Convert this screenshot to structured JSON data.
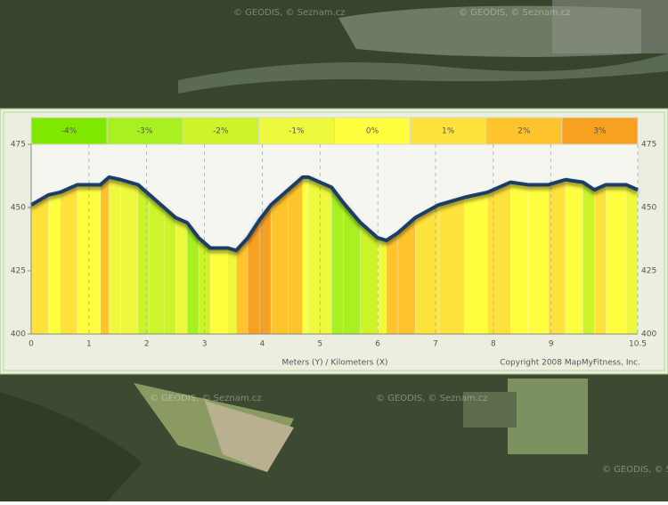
{
  "map": {
    "watermarks": [
      "© GEODIS, © Seznam.cz",
      "© GEODIS, © Seznam.cz",
      "© GEODIS, © Seznam.cz",
      "© GEODIS, © Seznam.cz",
      "© GEODIS, © Seznam.cz"
    ]
  },
  "chart_data": {
    "type": "area",
    "grades": [
      {
        "value": -4,
        "label": "-4%",
        "color": "#80e800"
      },
      {
        "value": -3,
        "label": "-3%",
        "color": "#a8f020"
      },
      {
        "value": -2,
        "label": "-2%",
        "color": "#ccf428"
      },
      {
        "value": -1,
        "label": "-1%",
        "color": "#eef83c"
      },
      {
        "value": 0,
        "label": "0%",
        "color": "#ffff40"
      },
      {
        "value": 1,
        "label": "1%",
        "color": "#ffe23c"
      },
      {
        "value": 2,
        "label": "2%",
        "color": "#ffc42c"
      },
      {
        "value": 3,
        "label": "3%",
        "color": "#f8a020"
      }
    ],
    "x": [
      0,
      0.3,
      0.5,
      0.8,
      1.0,
      1.2,
      1.35,
      1.55,
      1.85,
      2.05,
      2.3,
      2.5,
      2.7,
      2.9,
      3.1,
      3.4,
      3.55,
      3.75,
      3.95,
      4.15,
      4.45,
      4.7,
      4.8,
      5.2,
      5.4,
      5.7,
      6.0,
      6.15,
      6.35,
      6.65,
      7.05,
      7.5,
      7.9,
      8.3,
      8.6,
      8.95,
      9.25,
      9.55,
      9.75,
      9.95,
      10.3,
      10.5
    ],
    "values": [
      451,
      455,
      456,
      459,
      459,
      459,
      462,
      461,
      459,
      455,
      450,
      446,
      444,
      438,
      434,
      434,
      433,
      438,
      445,
      451,
      457,
      462,
      462,
      458,
      452,
      444,
      438,
      437,
      440,
      446,
      451,
      454,
      456,
      460,
      459,
      459,
      461,
      460,
      457,
      459,
      459,
      457
    ],
    "xlim": [
      0,
      10.5
    ],
    "xticks": [
      0,
      1,
      2,
      3,
      4,
      5,
      6,
      7,
      8,
      9,
      10.5
    ],
    "ylim": [
      400,
      475
    ],
    "yticks": [
      400,
      425,
      450,
      475
    ],
    "axis_label": "Meters (Y) / Kilometers (X)",
    "copyright": "Copyright 2008 MapMyFitness, Inc."
  }
}
